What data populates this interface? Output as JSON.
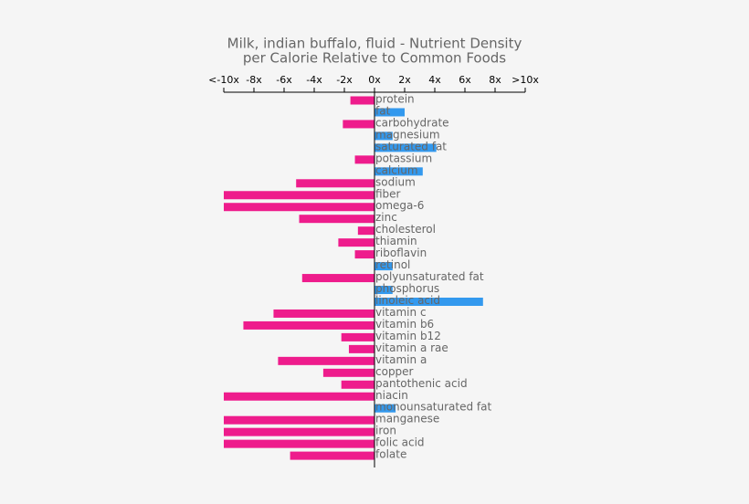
{
  "chart_data": {
    "type": "bar",
    "orientation": "horizontal",
    "title": [
      "Milk, indian buffalo, fluid - Nutrient Density",
      "per Calorie Relative to Common Foods"
    ],
    "categories": [
      "protein",
      "fat",
      "carbohydrate",
      "magnesium",
      "saturated fat",
      "potassium",
      "calcium",
      "sodium",
      "fiber",
      "omega-6",
      "zinc",
      "cholesterol",
      "thiamin",
      "riboflavin",
      "retinol",
      "polyunsaturated fat",
      "phosphorus",
      "linoleic acid",
      "vitamin c",
      "vitamin b6",
      "vitamin b12",
      "vitamin a rae",
      "vitamin a",
      "copper",
      "pantothenic acid",
      "niacin",
      "monounsaturated fat",
      "manganese",
      "iron",
      "folic acid",
      "folate"
    ],
    "values": [
      -1.6,
      2.0,
      -2.1,
      1.2,
      4.1,
      -1.3,
      3.2,
      -5.2,
      -10,
      -10,
      -5.0,
      -1.1,
      -2.4,
      -1.3,
      1.2,
      -4.8,
      1.2,
      7.2,
      -6.7,
      -8.7,
      -2.2,
      -1.7,
      -6.4,
      -3.4,
      -2.2,
      -10,
      1.4,
      -10,
      -10,
      -10,
      -5.6
    ],
    "positive_color": "#3399ee",
    "negative_color": "#ee1c8c",
    "xlim": [
      -10,
      10
    ],
    "xticks": [
      {
        "value": -10,
        "label": "<-10x"
      },
      {
        "value": -8,
        "label": "-8x"
      },
      {
        "value": -6,
        "label": "-6x"
      },
      {
        "value": -4,
        "label": "-4x"
      },
      {
        "value": -2,
        "label": "-2x"
      },
      {
        "value": 0,
        "label": "0x"
      },
      {
        "value": 2,
        "label": "2x"
      },
      {
        "value": 4,
        "label": "4x"
      },
      {
        "value": 6,
        "label": "6x"
      },
      {
        "value": 8,
        "label": "8x"
      },
      {
        "value": 10,
        "label": ">10x"
      }
    ]
  }
}
